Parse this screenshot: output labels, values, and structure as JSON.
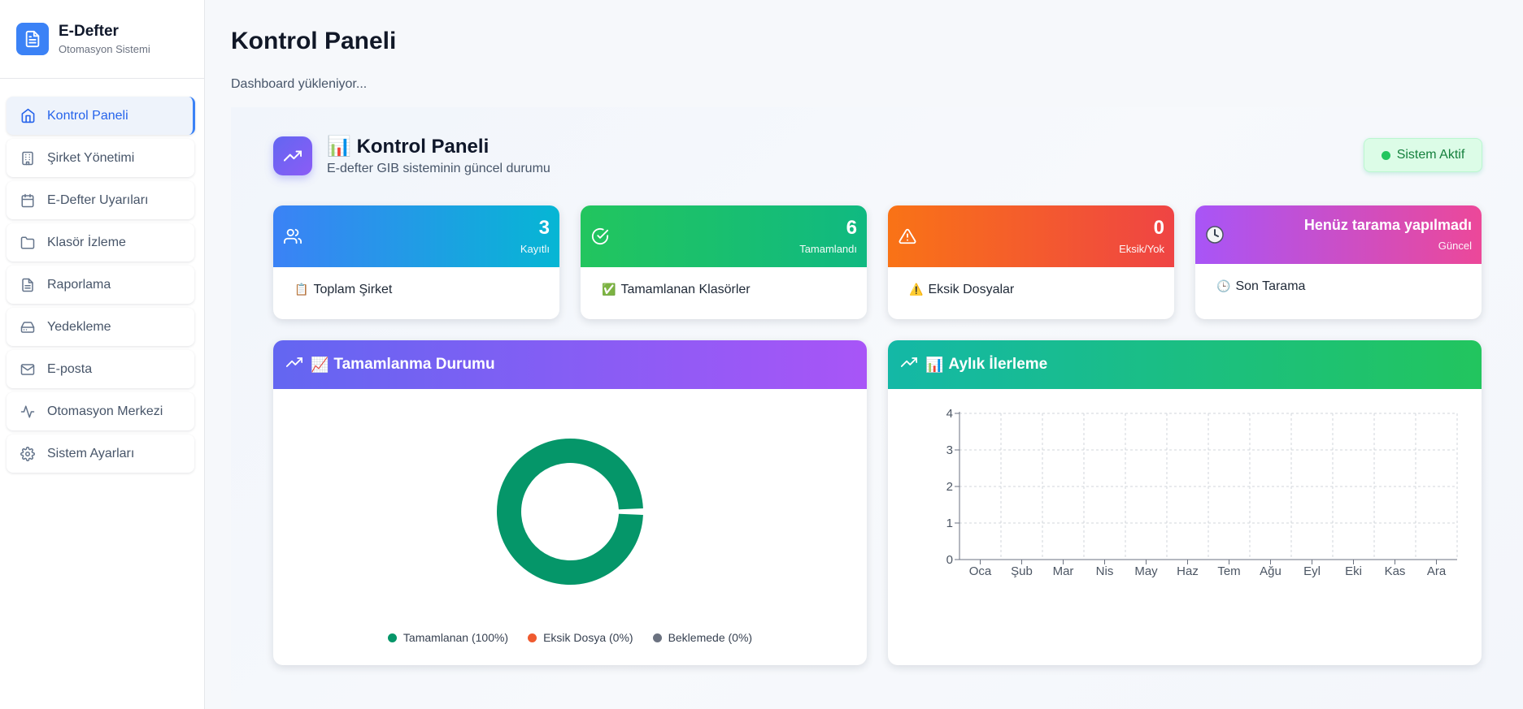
{
  "brand": {
    "title": "E-Defter",
    "subtitle": "Otomasyon Sistemi"
  },
  "sidebar": {
    "items": [
      {
        "label": "Kontrol Paneli",
        "icon": "home-icon"
      },
      {
        "label": "Şirket Yönetimi",
        "icon": "building-icon"
      },
      {
        "label": "E-Defter Uyarıları",
        "icon": "calendar-icon"
      },
      {
        "label": "Klasör İzleme",
        "icon": "folder-icon"
      },
      {
        "label": "Raporlama",
        "icon": "file-text-icon"
      },
      {
        "label": "Yedekleme",
        "icon": "hard-drive-icon"
      },
      {
        "label": "E-posta",
        "icon": "mail-icon"
      },
      {
        "label": "Otomasyon Merkezi",
        "icon": "activity-icon"
      },
      {
        "label": "Sistem Ayarları",
        "icon": "gear-icon"
      }
    ]
  },
  "page": {
    "title": "Kontrol Paneli",
    "loading": "Dashboard yükleniyor..."
  },
  "header": {
    "emoji": "📊",
    "title": "Kontrol Paneli",
    "subtitle": "E-defter GIB sisteminin güncel durumu",
    "status": "Sistem Aktif"
  },
  "cards": [
    {
      "value": "3",
      "caption": "Kayıtlı",
      "emoji": "📋",
      "label": "Toplam Şirket",
      "color_from": "#3b82f6",
      "color_to": "#06b6d4"
    },
    {
      "value": "6",
      "caption": "Tamamlandı",
      "emoji": "✅",
      "label": "Tamamlanan Klasörler",
      "color_from": "#22c55e",
      "color_to": "#10b981"
    },
    {
      "value": "0",
      "caption": "Eksik/Yok",
      "emoji": "⚠️",
      "label": "Eksik Dosyalar",
      "color_from": "#f97316",
      "color_to": "#ef4444"
    },
    {
      "value": "Henüz tarama yapılmadı",
      "caption": "Güncel",
      "emoji": "🕒",
      "label": "Son Tarama",
      "color_from": "#a855f7",
      "color_to": "#ec4899"
    }
  ],
  "completion_chart": {
    "emoji": "📈",
    "title": "Tamamlanma Durumu",
    "legend": [
      "Tamamlanan (100%)",
      "Eksik Dosya (0%)",
      "Beklemede (0%)"
    ],
    "colors": [
      "#059669",
      "#ef5a2f",
      "#6b7280"
    ]
  },
  "monthly_chart": {
    "emoji": "📊",
    "title": "Aylık İlerleme"
  },
  "chart_data": [
    {
      "type": "pie",
      "categories": [
        "Tamamlanan",
        "Eksik Dosya",
        "Beklemede"
      ],
      "values": [
        100,
        0,
        0
      ],
      "colors": [
        "#059669",
        "#ef5a2f",
        "#6b7280"
      ],
      "donut": true,
      "legend": "bottom"
    },
    {
      "type": "bar",
      "categories": [
        "Oca",
        "Şub",
        "Mar",
        "Nis",
        "May",
        "Haz",
        "Tem",
        "Ağu",
        "Eyl",
        "Eki",
        "Kas",
        "Ara"
      ],
      "values": [
        0,
        0,
        0,
        0,
        0,
        0,
        0,
        0,
        0,
        0,
        0,
        0
      ],
      "ylim": [
        0,
        4
      ],
      "yticks": [
        0,
        1,
        2,
        3,
        4
      ],
      "grid": true,
      "xlabel": "",
      "ylabel": ""
    }
  ]
}
